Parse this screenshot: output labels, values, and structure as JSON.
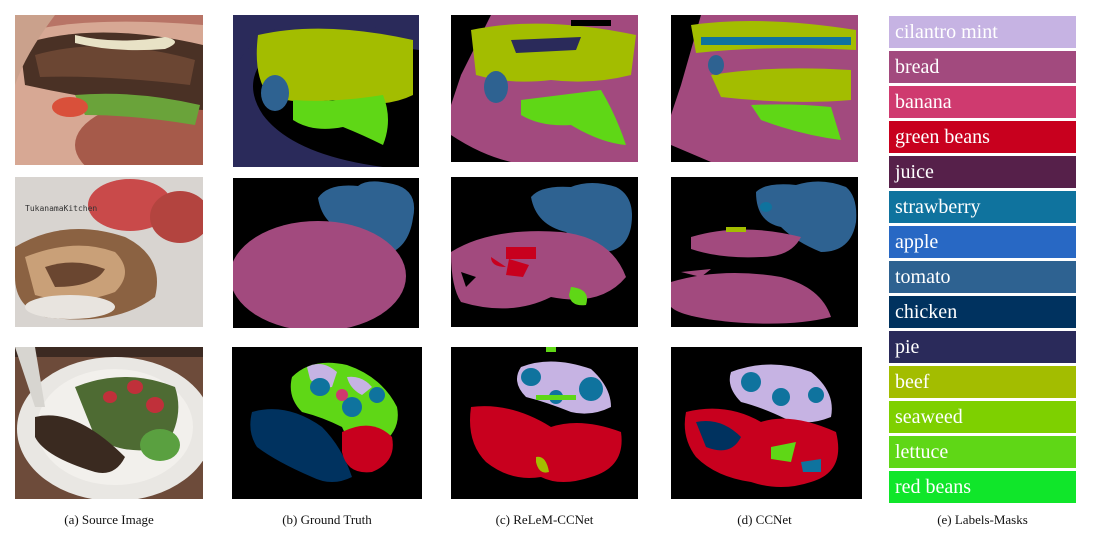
{
  "captions": {
    "source": "(a) Source Image",
    "gt": "(b) Ground Truth",
    "releme": "(c) ReLeM-CCNet",
    "ccnet": "(d) CCNet",
    "labels": "(e) Labels-Masks"
  },
  "watermark": "TukanamaKitchen",
  "legend": [
    {
      "label": "cilantro mint",
      "color": "#c6b3e3"
    },
    {
      "label": "bread",
      "color": "#a24a7e"
    },
    {
      "label": "banana",
      "color": "#cf3a6f"
    },
    {
      "label": "green beans",
      "color": "#c8001e"
    },
    {
      "label": "juice",
      "color": "#56204a"
    },
    {
      "label": "strawberry",
      "color": "#0f739e"
    },
    {
      "label": "apple",
      "color": "#2868c4"
    },
    {
      "label": "tomato",
      "color": "#2e6291"
    },
    {
      "label": "chicken",
      "color": "#00325f"
    },
    {
      "label": "pie",
      "color": "#2a2a5a"
    },
    {
      "label": "beef",
      "color": "#a3bd00"
    },
    {
      "label": "seaweed",
      "color": "#7ed000"
    },
    {
      "label": "lettuce",
      "color": "#5fd716"
    },
    {
      "label": "red beans",
      "color": "#10e62a"
    }
  ]
}
